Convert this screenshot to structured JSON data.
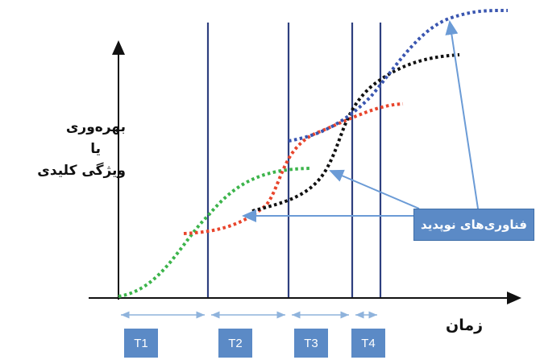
{
  "y_axis_label": {
    "line1": "بهره‌وری",
    "line2": "یا",
    "line3": "ویژگی کلیدی"
  },
  "x_axis_label": "زمان",
  "period_labels": [
    "T1",
    "T2",
    "T3",
    "T4"
  ],
  "callout_text": "فناوری‌های نوپدید",
  "colors": {
    "axis": "#111111",
    "divider": "#2e3f7f",
    "green_curve": "#3cb44b",
    "red_curve": "#e8452c",
    "black_curve": "#111111",
    "blue_curve": "#3a56b0",
    "callout": "#5b8ac6",
    "period_arrow": "#8fb3dc"
  }
}
